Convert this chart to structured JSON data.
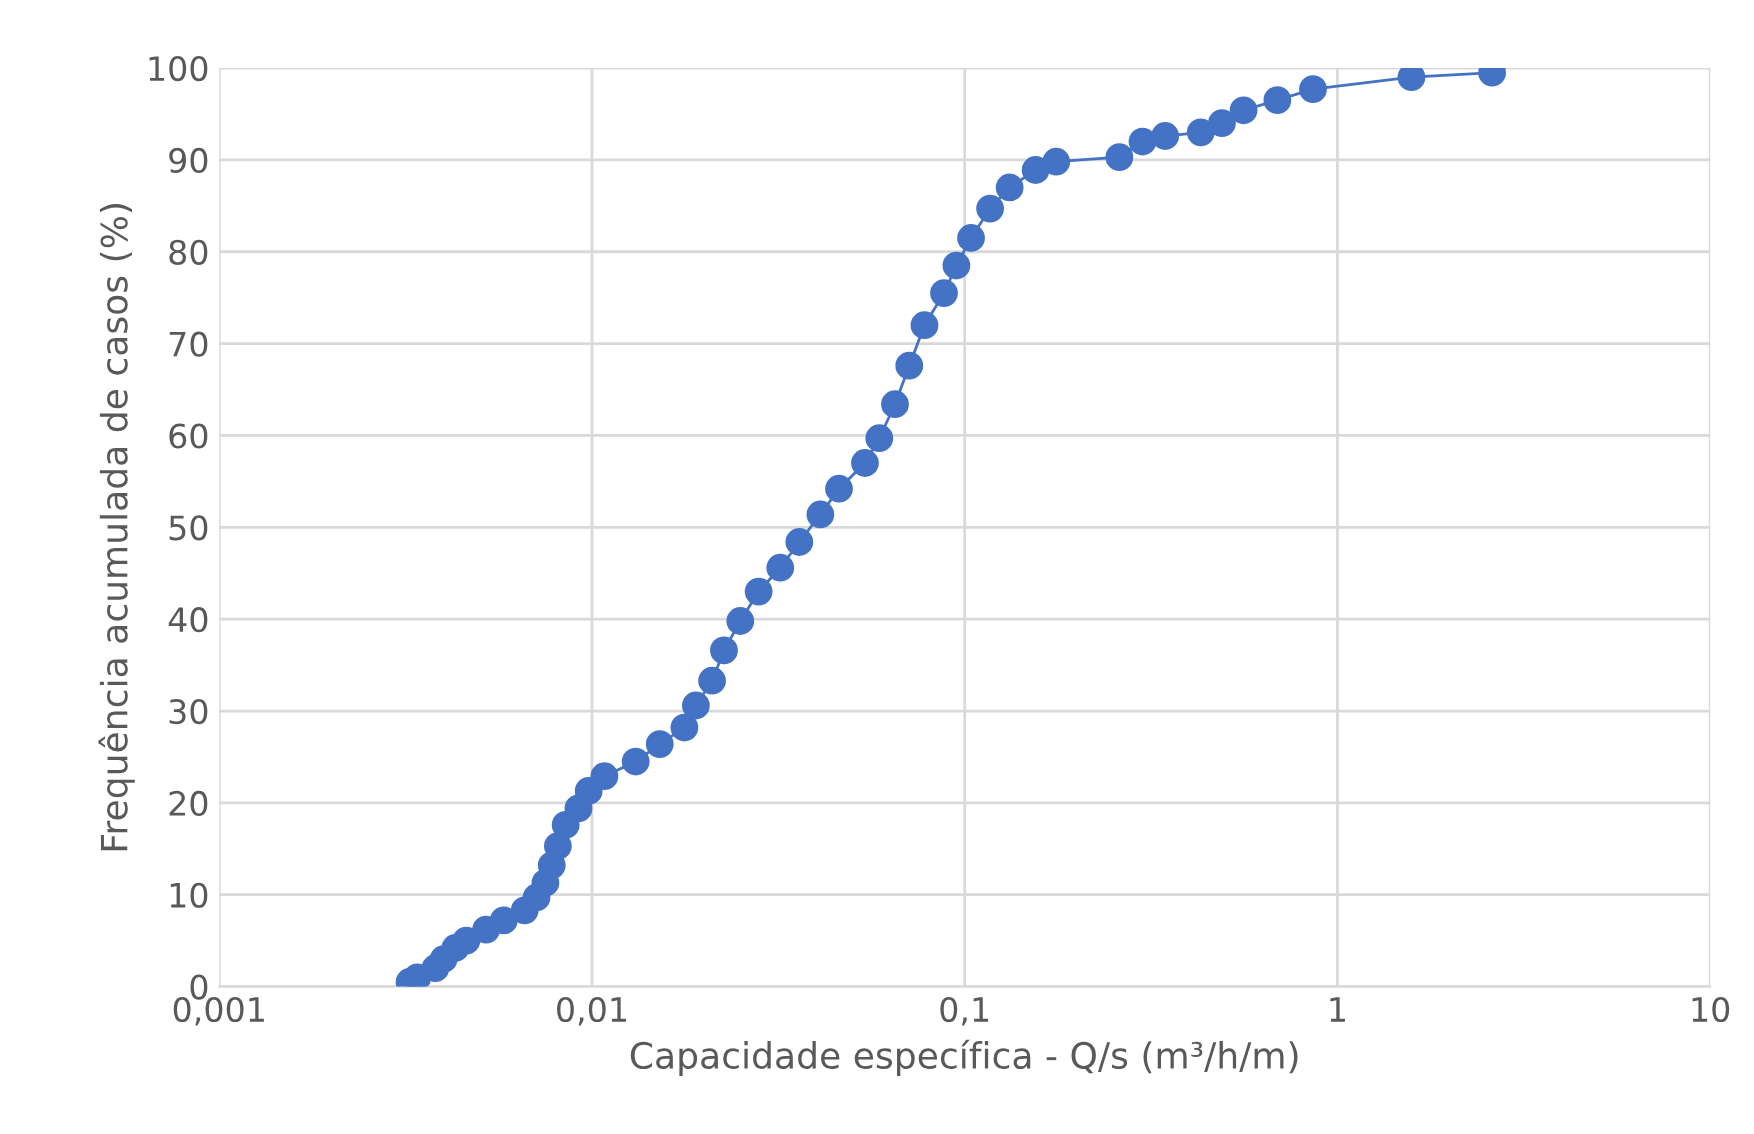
{
  "chart_data": {
    "type": "line",
    "xlabel": "Capacidade específica - Q/s (m³/h/m)",
    "ylabel": "Frequência acumulada de casos (%)",
    "x": [
      0.00324,
      0.0034,
      0.0038,
      0.004,
      0.0043,
      0.0046,
      0.0052,
      0.0058,
      0.0066,
      0.0071,
      0.0075,
      0.0078,
      0.0081,
      0.0085,
      0.0092,
      0.0098,
      0.0108,
      0.0131,
      0.0152,
      0.0177,
      0.019,
      0.021,
      0.0226,
      0.025,
      0.028,
      0.032,
      0.036,
      0.041,
      0.046,
      0.054,
      0.059,
      0.065,
      0.071,
      0.078,
      0.088,
      0.095,
      0.104,
      0.117,
      0.132,
      0.155,
      0.176,
      0.26,
      0.3,
      0.345,
      0.43,
      0.49,
      0.56,
      0.69,
      0.86,
      1.58,
      2.6
    ],
    "series": [
      {
        "color": "#4472c4",
        "values": [
          0.5,
          1,
          2,
          3,
          4.2,
          5,
          6.2,
          7.2,
          8.3,
          9.7,
          11.3,
          13.2,
          15.3,
          17.6,
          19.4,
          21.3,
          22.9,
          24.5,
          26.4,
          28.2,
          30.6,
          33.3,
          36.6,
          39.8,
          43,
          45.6,
          48.4,
          51.4,
          54.2,
          57,
          59.7,
          63.4,
          67.6,
          72,
          75.5,
          78.5,
          81.5,
          84.7,
          87,
          88.9,
          89.8,
          90.3,
          92,
          92.6,
          93,
          94,
          95.4,
          96.5,
          97.7,
          99,
          99.5
        ]
      }
    ],
    "log": "x",
    "xlim": [
      0.001,
      10
    ],
    "xticks": [
      {
        "value": 0.001,
        "label": "0,001"
      },
      {
        "value": 0.01,
        "label": "0,01"
      },
      {
        "value": 0.1,
        "label": "0,1"
      },
      1,
      10
    ],
    "ylim": [
      0,
      100
    ],
    "yticks": [
      0,
      10,
      20,
      30,
      40,
      50,
      60,
      70,
      80,
      90,
      100
    ],
    "grid": true,
    "marker": "circle",
    "line_style": "solid"
  }
}
